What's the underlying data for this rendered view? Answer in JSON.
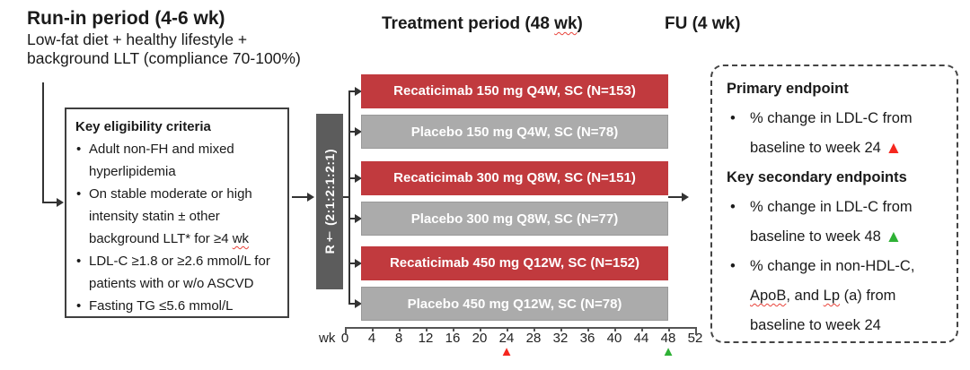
{
  "colors": {
    "arm_red": "#c13a3e",
    "arm_gray": "#ababab",
    "randomization_box": "#5c5c5c",
    "marker_red": "#f5271e",
    "marker_green": "#2eb135"
  },
  "run_in": {
    "title": "Run-in period (4-6 wk)",
    "line1": "Low-fat diet + healthy lifestyle +",
    "line2": "background LLT (compliance 70-100%)"
  },
  "headers": {
    "treatment_segments": [
      {
        "t": "Treatment period (48 "
      },
      {
        "t": "wk",
        "c": "wavy"
      },
      {
        "t": ")"
      }
    ],
    "fu": "FU (4 wk)"
  },
  "icons": {
    "bullet": "•",
    "red_triangle": "▲",
    "green_triangle": "▲"
  },
  "eligibility": {
    "title": "Key eligibility criteria",
    "items": [
      {
        "segments": [
          {
            "t": "Adult non-FH and mixed"
          },
          {
            "br": true
          },
          {
            "t": "hyperlipidemia"
          }
        ]
      },
      {
        "segments": [
          {
            "t": "On stable moderate or high"
          },
          {
            "br": true
          },
          {
            "t": "intensity statin ± other"
          },
          {
            "br": true
          },
          {
            "t": "background LLT* for ≥4 "
          },
          {
            "t": "wk",
            "c": "wavy"
          }
        ]
      },
      {
        "segments": [
          {
            "t": "LDL-C ≥1.8 or ≥2.6 mmol/L for"
          },
          {
            "br": true
          },
          {
            "t": "patients with or w/o ASCVD"
          }
        ]
      },
      {
        "segments": [
          {
            "t": "Fasting TG ≤5.6 mmol/L"
          }
        ]
      }
    ]
  },
  "randomization": {
    "label": "R† (2:1:2:1:2:1)"
  },
  "arms": [
    {
      "label": "Recaticimab 150 mg Q4W, SC (N=153)",
      "type": "recaticimab"
    },
    {
      "label": "Placebo 150 mg Q4W, SC (N=78)",
      "type": "placebo"
    },
    {
      "label": "Recaticimab 300 mg Q8W, SC (N=151)",
      "type": "recaticimab"
    },
    {
      "label": "Placebo 300 mg Q8W, SC (N=77)",
      "type": "placebo"
    },
    {
      "label": "Recaticimab 450 mg Q12W, SC (N=152)",
      "type": "recaticimab"
    },
    {
      "label": "Placebo 450 mg Q12W, SC (N=78)",
      "type": "placebo"
    }
  ],
  "endpoints": {
    "primary_title": "Primary endpoint",
    "primary_items": [
      {
        "segments": [
          {
            "t": "% change in LDL-C from"
          },
          {
            "br": true
          },
          {
            "t": "baseline to week 24 "
          },
          {
            "t": "▲",
            "c": "tri tri-red"
          }
        ]
      }
    ],
    "secondary_title": "Key secondary endpoints",
    "secondary_items": [
      {
        "segments": [
          {
            "t": "% change in LDL-C from"
          },
          {
            "br": true
          },
          {
            "t": "baseline to week 48 "
          },
          {
            "t": "▲",
            "c": "tri tri-green"
          }
        ]
      },
      {
        "segments": [
          {
            "t": "% change in non-HDL-C,"
          },
          {
            "br": true
          },
          {
            "t": "ApoB",
            "c": "wavy"
          },
          {
            "t": ", and "
          },
          {
            "t": "Lp",
            "c": "wavy"
          },
          {
            "t": " (a) from"
          },
          {
            "br": true
          },
          {
            "t": "baseline to week 24"
          }
        ]
      }
    ]
  },
  "timeline": {
    "unit_label": "wk",
    "ticks": [
      "0",
      "4",
      "8",
      "12",
      "16",
      "20",
      "24",
      "28",
      "32",
      "36",
      "40",
      "44",
      "48",
      "52"
    ],
    "markers": [
      {
        "week": "24",
        "glyph": "▲",
        "color": "red"
      },
      {
        "week": "48",
        "glyph": "▲",
        "color": "green"
      }
    ]
  }
}
